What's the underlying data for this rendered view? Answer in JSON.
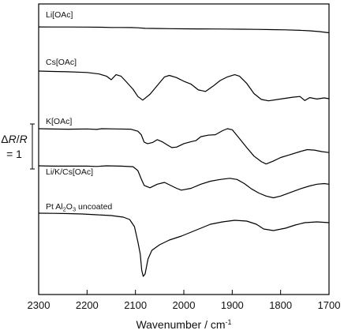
{
  "chart_data": {
    "type": "line",
    "xlabel_main": "Wavenumber / cm",
    "xlabel_sup": "-1",
    "x_axis": {
      "min": 1700,
      "max": 2300,
      "reversed": true,
      "ticks": [
        2300,
        2200,
        2100,
        2000,
        1900,
        1800,
        1700
      ],
      "tick_labels": [
        "2300",
        "2200",
        "2100",
        "2000",
        "1900",
        "1800",
        "1700"
      ]
    },
    "scale_bar": {
      "label_delta": "Δ",
      "label_r1": "R",
      "label_slash": "/",
      "label_r2": "R",
      "label_value": "= 1"
    },
    "series": [
      {
        "name": "Li[OAc]",
        "offset": 0,
        "label_parts": [
          "Li[OAc]"
        ],
        "points": [
          [
            2300,
            0.2
          ],
          [
            2270,
            0.3
          ],
          [
            2240,
            0.4
          ],
          [
            2200,
            0.6
          ],
          [
            2170,
            1.0
          ],
          [
            2150,
            1.6
          ],
          [
            2130,
            1.5
          ],
          [
            2110,
            1.8
          ],
          [
            2095,
            2.4
          ],
          [
            2080,
            3.6
          ],
          [
            2065,
            3.8
          ],
          [
            2050,
            4.0
          ],
          [
            2030,
            4.5
          ],
          [
            2000,
            4.8
          ],
          [
            1970,
            5.0
          ],
          [
            1940,
            5.2
          ],
          [
            1910,
            5.4
          ],
          [
            1880,
            5.7
          ],
          [
            1850,
            6.2
          ],
          [
            1820,
            6.8
          ],
          [
            1790,
            7.4
          ],
          [
            1760,
            8.4
          ],
          [
            1740,
            9.6
          ],
          [
            1720,
            11.5
          ],
          [
            1700,
            14.5
          ]
        ]
      },
      {
        "name": "Cs[OAc]",
        "offset": 0,
        "label_parts": [
          "Cs[OAc]"
        ],
        "points": [
          [
            2300,
            0
          ],
          [
            2270,
            0.5
          ],
          [
            2240,
            1.0
          ],
          [
            2200,
            2.0
          ],
          [
            2175,
            4.0
          ],
          [
            2160,
            7.0
          ],
          [
            2150,
            12.0
          ],
          [
            2140,
            5.0
          ],
          [
            2130,
            7.0
          ],
          [
            2120,
            14.0
          ],
          [
            2105,
            25.0
          ],
          [
            2095,
            35.0
          ],
          [
            2085,
            40.0
          ],
          [
            2070,
            32.0
          ],
          [
            2055,
            20.0
          ],
          [
            2040,
            8.0
          ],
          [
            2030,
            6.0
          ],
          [
            2015,
            9.0
          ],
          [
            2000,
            14.0
          ],
          [
            1985,
            18.0
          ],
          [
            1970,
            26.0
          ],
          [
            1955,
            28.0
          ],
          [
            1940,
            21.0
          ],
          [
            1925,
            13.0
          ],
          [
            1910,
            8.0
          ],
          [
            1895,
            5.0
          ],
          [
            1885,
            7.0
          ],
          [
            1870,
            17.0
          ],
          [
            1855,
            31.0
          ],
          [
            1840,
            39.0
          ],
          [
            1825,
            41.0
          ],
          [
            1800,
            38.5
          ],
          [
            1775,
            36.0
          ],
          [
            1760,
            35.0
          ],
          [
            1750,
            40.5
          ],
          [
            1740,
            36.5
          ],
          [
            1725,
            38.5
          ],
          [
            1710,
            37.0
          ],
          [
            1700,
            38.0
          ]
        ]
      },
      {
        "name": "K[OAc]",
        "offset": 0,
        "label_parts": [
          "K[OAc]"
        ],
        "points": [
          [
            2300,
            0
          ],
          [
            2270,
            0.6
          ],
          [
            2240,
            1.0
          ],
          [
            2220,
            0.8
          ],
          [
            2200,
            0.5
          ],
          [
            2180,
            1.5
          ],
          [
            2170,
            0.0
          ],
          [
            2140,
            0.5
          ],
          [
            2110,
            1.0
          ],
          [
            2095,
            5.0
          ],
          [
            2088,
            12.0
          ],
          [
            2082,
            27.0
          ],
          [
            2075,
            30.0
          ],
          [
            2065,
            28.0
          ],
          [
            2055,
            22.0
          ],
          [
            2045,
            26.0
          ],
          [
            2035,
            32.0
          ],
          [
            2025,
            38.0
          ],
          [
            2015,
            37.0
          ],
          [
            2000,
            30.0
          ],
          [
            1985,
            26.0
          ],
          [
            1975,
            24.0
          ],
          [
            1965,
            16.0
          ],
          [
            1950,
            13.0
          ],
          [
            1935,
            12.0
          ],
          [
            1920,
            4.0
          ],
          [
            1910,
            0.0
          ],
          [
            1900,
            2.0
          ],
          [
            1890,
            14.0
          ],
          [
            1870,
            38.0
          ],
          [
            1855,
            55.0
          ],
          [
            1840,
            66.0
          ],
          [
            1830,
            71.0
          ],
          [
            1815,
            65.0
          ],
          [
            1800,
            58.0
          ],
          [
            1780,
            52.0
          ],
          [
            1760,
            46.0
          ],
          [
            1745,
            42.0
          ],
          [
            1730,
            43.0
          ],
          [
            1715,
            46.0
          ],
          [
            1700,
            48.0
          ]
        ]
      },
      {
        "name": "Li/K/Cs[OAc]",
        "offset": 0,
        "label_parts": [
          "Li/K/Cs[OAc]"
        ],
        "points": [
          [
            2300,
            0
          ],
          [
            2270,
            0.5
          ],
          [
            2240,
            0.5
          ],
          [
            2200,
            0.5
          ],
          [
            2180,
            1.0
          ],
          [
            2160,
            0.0
          ],
          [
            2130,
            0.5
          ],
          [
            2105,
            1.5
          ],
          [
            2095,
            8.0
          ],
          [
            2088,
            22.0
          ],
          [
            2082,
            33.0
          ],
          [
            2070,
            37.0
          ],
          [
            2055,
            31.0
          ],
          [
            2040,
            28.0
          ],
          [
            2030,
            32.0
          ],
          [
            2015,
            38.0
          ],
          [
            2005,
            41.0
          ],
          [
            1985,
            38.0
          ],
          [
            1965,
            31.0
          ],
          [
            1945,
            26.0
          ],
          [
            1925,
            23.0
          ],
          [
            1905,
            21.0
          ],
          [
            1890,
            23.0
          ],
          [
            1875,
            30.0
          ],
          [
            1860,
            39.0
          ],
          [
            1845,
            46.0
          ],
          [
            1830,
            51.0
          ],
          [
            1815,
            54.0
          ],
          [
            1800,
            51.0
          ],
          [
            1780,
            45.0
          ],
          [
            1760,
            39.0
          ],
          [
            1740,
            34.0
          ],
          [
            1725,
            31.0
          ],
          [
            1710,
            30.0
          ],
          [
            1700,
            31.0
          ]
        ]
      },
      {
        "name": "Pt Al2O3 uncoated",
        "offset": 0,
        "label_parts": [
          "Pt Al",
          "2",
          "O",
          "3",
          " uncoated"
        ],
        "points": [
          [
            2300,
            0
          ],
          [
            2270,
            0.2
          ],
          [
            2240,
            0.5
          ],
          [
            2210,
            1.0
          ],
          [
            2180,
            2.0
          ],
          [
            2150,
            3.0
          ],
          [
            2125,
            5.0
          ],
          [
            2112,
            8.0
          ],
          [
            2102,
            17.0
          ],
          [
            2095,
            36.0
          ],
          [
            2090,
            52.0
          ],
          [
            2087,
            72.0
          ],
          [
            2084,
            80.0
          ],
          [
            2080,
            77.0
          ],
          [
            2074,
            58.0
          ],
          [
            2066,
            47.0
          ],
          [
            2050,
            40.0
          ],
          [
            2030,
            34.0
          ],
          [
            2005,
            29.0
          ],
          [
            1985,
            24.0
          ],
          [
            1965,
            19.0
          ],
          [
            1945,
            14.0
          ],
          [
            1920,
            11.0
          ],
          [
            1895,
            9.0
          ],
          [
            1870,
            10.0
          ],
          [
            1850,
            14.0
          ],
          [
            1835,
            20.0
          ],
          [
            1815,
            22.0
          ],
          [
            1790,
            19.0
          ],
          [
            1770,
            15.0
          ],
          [
            1750,
            12.0
          ],
          [
            1725,
            11.0
          ],
          [
            1700,
            12.0
          ]
        ]
      }
    ]
  }
}
